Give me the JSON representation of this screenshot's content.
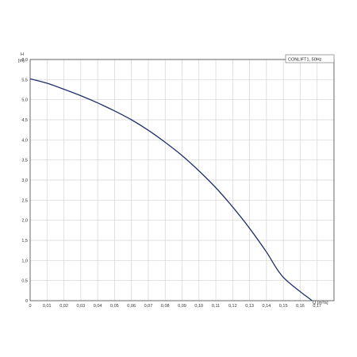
{
  "chart_data": {
    "type": "line",
    "legend": "CONLIFT1, 50Hz",
    "legend_position": "top-right",
    "ylabel_symbol": "H",
    "ylabel_unit": "[m]",
    "xlabel": "Q [m³/s]",
    "xlim": [
      0,
      0.18
    ],
    "ylim": [
      0,
      6.0
    ],
    "x_ticks": [
      "0",
      "0,01",
      "0,02",
      "0,03",
      "0,04",
      "0,05",
      "0,06",
      "0,07",
      "0,08",
      "0,09",
      "0,10",
      "0,11",
      "0,12",
      "0,13",
      "0,14",
      "0,15",
      "0,16",
      "0,17"
    ],
    "y_ticks": [
      "0",
      "0,5",
      "1,0",
      "1,5",
      "2,0",
      "2,5",
      "3,0",
      "3,5",
      "4,0",
      "4,5",
      "5,0",
      "5,5",
      "6,0"
    ],
    "grid": true,
    "line_color": "#1f2f6b",
    "series": [
      {
        "name": "CONLIFT1, 50Hz",
        "x": [
          0,
          0.01,
          0.02,
          0.03,
          0.04,
          0.05,
          0.06,
          0.07,
          0.08,
          0.09,
          0.1,
          0.11,
          0.12,
          0.13,
          0.14,
          0.15,
          0.16,
          0.167
        ],
        "y": [
          5.52,
          5.41,
          5.26,
          5.1,
          4.92,
          4.72,
          4.5,
          4.24,
          3.94,
          3.61,
          3.23,
          2.81,
          2.33,
          1.8,
          1.21,
          0.58,
          -0.1,
          0.0
        ]
      }
    ]
  }
}
